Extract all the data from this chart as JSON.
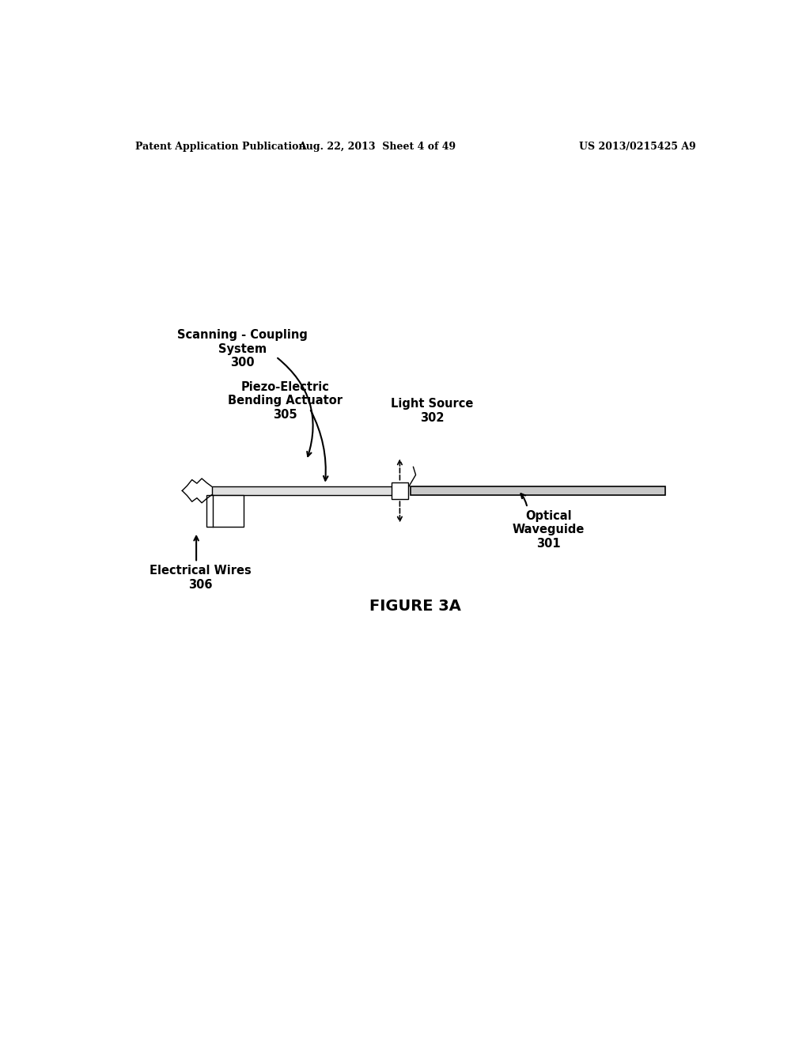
{
  "bg_color": "#ffffff",
  "header_left": "Patent Application Publication",
  "header_mid": "Aug. 22, 2013  Sheet 4 of 49",
  "header_right": "US 2013/0215425 A9",
  "figure_caption": "FIGURE 3A",
  "label_scanning": "Scanning - Coupling\nSystem\n300",
  "label_piezo": "Piezo-Electric\nBending Actuator\n305",
  "label_light": "Light Source\n302",
  "label_optical": "Optical\nWaveguide\n301",
  "label_electrical": "Electrical Wires\n306"
}
